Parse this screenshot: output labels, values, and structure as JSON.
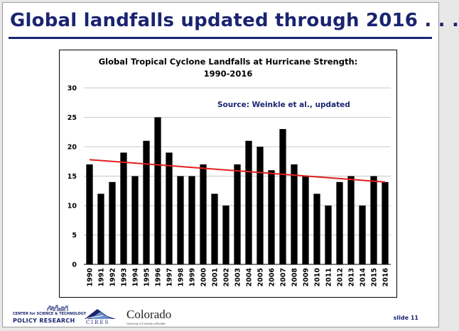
{
  "slide": {
    "title": "Global landfalls updated through 2016 . . .",
    "number": "slide 11"
  },
  "footer": {
    "cstpr_line1": "CENTER for SCIENCE & TECHNOLOGY",
    "cstpr_line2": "POLICY RESEARCH",
    "cires_label": "CIRES",
    "colorado_label": "Colorado",
    "colorado_sub": "University of Colorado at Boulder"
  },
  "chart_data": {
    "type": "bar",
    "title_line1": "Global Tropical Cyclone Landfalls at Hurricane Strength:",
    "title_line2": "1990-2016",
    "annotation": "Source: Weinkle et al., updated",
    "categories": [
      "1990",
      "1991",
      "1992",
      "1993",
      "1994",
      "1995",
      "1996",
      "1997",
      "1998",
      "1999",
      "2000",
      "2001",
      "2002",
      "2003",
      "2004",
      "2005",
      "2006",
      "2007",
      "2008",
      "2009",
      "2010",
      "2011",
      "2012",
      "2013",
      "2014",
      "2015",
      "2016"
    ],
    "values": [
      17,
      12,
      14,
      19,
      15,
      21,
      25,
      19,
      15,
      15,
      17,
      12,
      10,
      17,
      21,
      20,
      16,
      23,
      17,
      15,
      12,
      10,
      14,
      15,
      10,
      15,
      14
    ],
    "ylim": [
      0,
      30
    ],
    "yticks": [
      0,
      5,
      10,
      15,
      20,
      25,
      30
    ],
    "grid": true,
    "bar_color": "#000000",
    "trend": {
      "start": 17.8,
      "end": 14.0,
      "color": "#e02020"
    }
  }
}
